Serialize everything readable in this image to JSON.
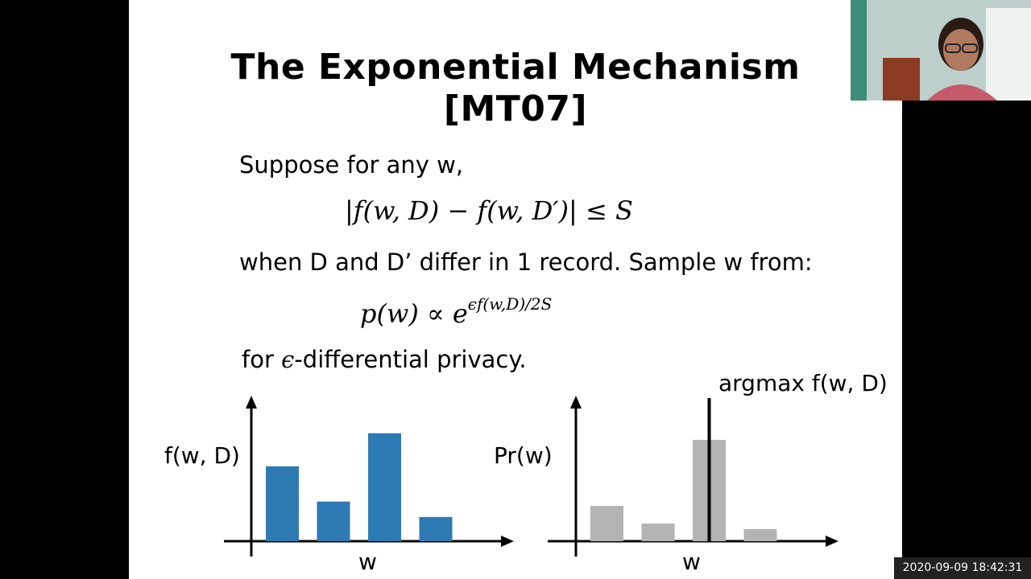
{
  "slide": {
    "title_line1": "The Exponential Mechanism",
    "title_line2": "[MT07]",
    "line1": "Suppose for any w,",
    "formula1": "|f(w, D) − f(w, D′)| ≤ S",
    "line2": "when D and D’ differ in 1 record.  Sample w from:",
    "formula2_base": "p(w) ∝ e",
    "formula2_exp": "ϵf(w,D)/2S",
    "line3_pre": "for ",
    "line3_eps": "ϵ",
    "line3_post": "-differential privacy."
  },
  "chart_data": [
    {
      "type": "bar",
      "ylabel": "f(w, D)",
      "xlabel": "w",
      "values": [
        0.68,
        0.36,
        0.98,
        0.22
      ],
      "color": "#2e7bb4"
    },
    {
      "type": "bar",
      "ylabel": "Pr(w)",
      "xlabel": "w",
      "values": [
        0.32,
        0.16,
        0.92,
        0.11
      ],
      "color": "#b3b3b3",
      "annotation": "argmax f(w, D)",
      "marker_index": 2
    }
  ],
  "overlay": {
    "timestamp": "2020-09-09  18:42:31"
  }
}
